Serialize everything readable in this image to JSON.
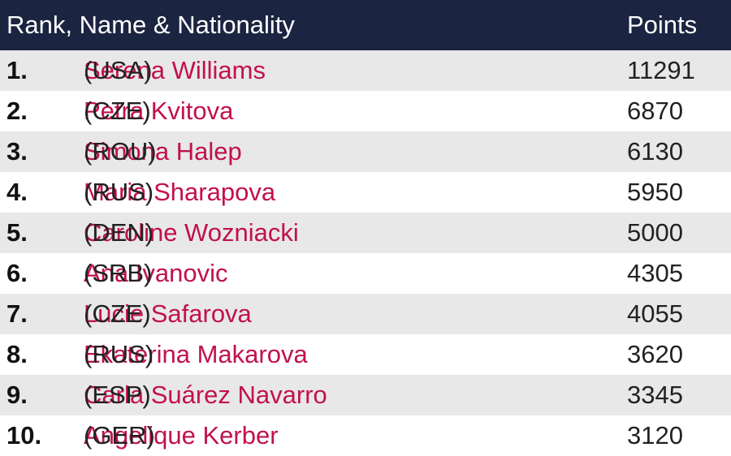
{
  "table": {
    "header": [
      "Rank, Name & Nationality",
      "Points"
    ],
    "rows": [
      [
        "1.",
        "Serena Williams",
        "(USA)",
        11291
      ],
      [
        "2.",
        "Petra Kvitova",
        "(CZE)",
        6870
      ],
      [
        "3.",
        "Simona Halep",
        "(ROU)",
        6130
      ],
      [
        "4.",
        "Maria Sharapova",
        "(RUS)",
        5950
      ],
      [
        "5.",
        "Caroline Wozniacki",
        "(DEN)",
        5000
      ],
      [
        "6.",
        "Ana Ivanovic",
        "(SRB)",
        4305
      ],
      [
        "7.",
        "Lucie Safarova",
        "(CZE)",
        4055
      ],
      [
        "8.",
        "Ekaterina Makarova",
        "(RUS)",
        3620
      ],
      [
        "9.",
        "Carla Suárez Navarro",
        "(ESP)",
        3345
      ],
      [
        "10.",
        "Angelique Kerber",
        "(GER)",
        3120
      ]
    ]
  }
}
